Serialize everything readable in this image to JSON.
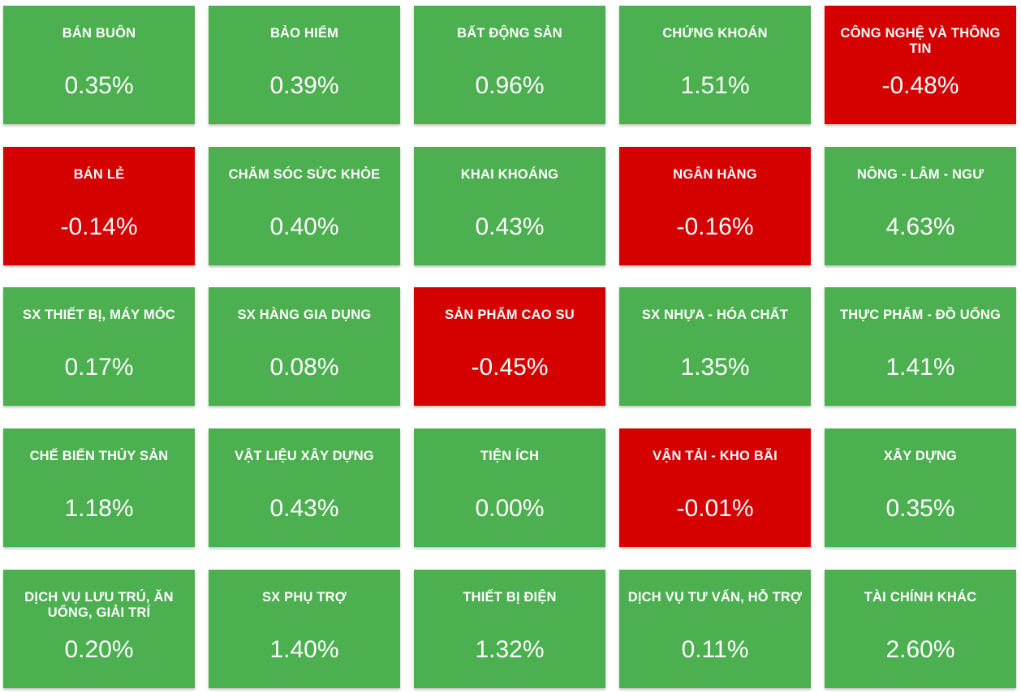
{
  "colors": {
    "up": "#4caf50",
    "down": "#d50000",
    "text": "#ffffff"
  },
  "sectors": [
    {
      "name": "BÁN BUÔN",
      "change": "0.35%",
      "trend": "up"
    },
    {
      "name": "BẢO HIỂM",
      "change": "0.39%",
      "trend": "up"
    },
    {
      "name": "BẤT ĐỘNG SẢN",
      "change": "0.96%",
      "trend": "up"
    },
    {
      "name": "CHỨNG KHOÁN",
      "change": "1.51%",
      "trend": "up"
    },
    {
      "name": "CÔNG NGHỆ VÀ THÔNG TIN",
      "change": "-0.48%",
      "trend": "down"
    },
    {
      "name": "BÁN LẺ",
      "change": "-0.14%",
      "trend": "down"
    },
    {
      "name": "CHĂM SÓC SỨC KHỎE",
      "change": "0.40%",
      "trend": "up"
    },
    {
      "name": "KHAI KHOÁNG",
      "change": "0.43%",
      "trend": "up"
    },
    {
      "name": "NGÂN HÀNG",
      "change": "-0.16%",
      "trend": "down"
    },
    {
      "name": "NÔNG - LÂM - NGƯ",
      "change": "4.63%",
      "trend": "up"
    },
    {
      "name": "SX THIẾT BỊ, MÁY MÓC",
      "change": "0.17%",
      "trend": "up"
    },
    {
      "name": "SX HÀNG GIA DỤNG",
      "change": "0.08%",
      "trend": "up"
    },
    {
      "name": "SẢN PHẨM CAO SU",
      "change": "-0.45%",
      "trend": "down"
    },
    {
      "name": "SX NHỰA - HÓA CHẤT",
      "change": "1.35%",
      "trend": "up"
    },
    {
      "name": "THỰC PHẨM - ĐỒ UỐNG",
      "change": "1.41%",
      "trend": "up"
    },
    {
      "name": "CHẾ BIẾN THỦY SẢN",
      "change": "1.18%",
      "trend": "up"
    },
    {
      "name": "VẬT LIỆU XÂY DỰNG",
      "change": "0.43%",
      "trend": "up"
    },
    {
      "name": "TIỆN ÍCH",
      "change": "0.00%",
      "trend": "up"
    },
    {
      "name": "VẬN TẢI - KHO BÃI",
      "change": "-0.01%",
      "trend": "down"
    },
    {
      "name": "XÂY DỰNG",
      "change": "0.35%",
      "trend": "up"
    },
    {
      "name": "DỊCH VỤ LƯU TRÚ, ĂN UỐNG, GIẢI TRÍ",
      "change": "0.20%",
      "trend": "up"
    },
    {
      "name": "SX PHỤ TRỢ",
      "change": "1.40%",
      "trend": "up"
    },
    {
      "name": "THIẾT BỊ ĐIỆN",
      "change": "1.32%",
      "trend": "up"
    },
    {
      "name": "DỊCH VỤ TƯ VẤN, HỖ TRỢ",
      "change": "0.11%",
      "trend": "up"
    },
    {
      "name": "TÀI CHÍNH KHÁC",
      "change": "2.60%",
      "trend": "up"
    }
  ]
}
